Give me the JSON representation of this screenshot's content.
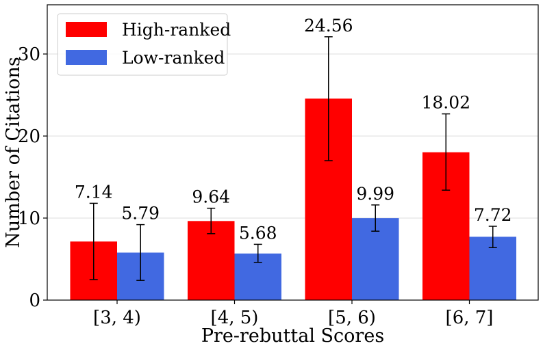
{
  "chart_data": {
    "type": "bar",
    "xlabel": "Pre-rebuttal Scores",
    "ylabel": "Number of Citations",
    "ylim": [
      0,
      36
    ],
    "yticks": [
      0,
      10,
      20,
      30
    ],
    "grid": "y",
    "legend_position": "top-left",
    "categories": [
      "[3, 4)",
      "[4, 5)",
      "[5, 6)",
      "[6, 7]"
    ],
    "series": [
      {
        "name": "High-ranked",
        "color": "#ff0000",
        "values": [
          7.14,
          9.64,
          24.56,
          18.02
        ],
        "error_low": [
          2.5,
          8.1,
          17.0,
          13.4
        ],
        "error_high": [
          11.8,
          11.2,
          32.1,
          22.7
        ],
        "labels": [
          "7.14",
          "9.64",
          "24.56",
          "18.02"
        ]
      },
      {
        "name": "Low-ranked",
        "color": "#4169e1",
        "values": [
          5.79,
          5.68,
          9.99,
          7.72
        ],
        "error_low": [
          2.4,
          4.6,
          8.4,
          6.4
        ],
        "error_high": [
          9.2,
          6.8,
          11.6,
          9.0
        ],
        "labels": [
          "5.79",
          "5.68",
          "9.99",
          "7.72"
        ]
      }
    ]
  }
}
